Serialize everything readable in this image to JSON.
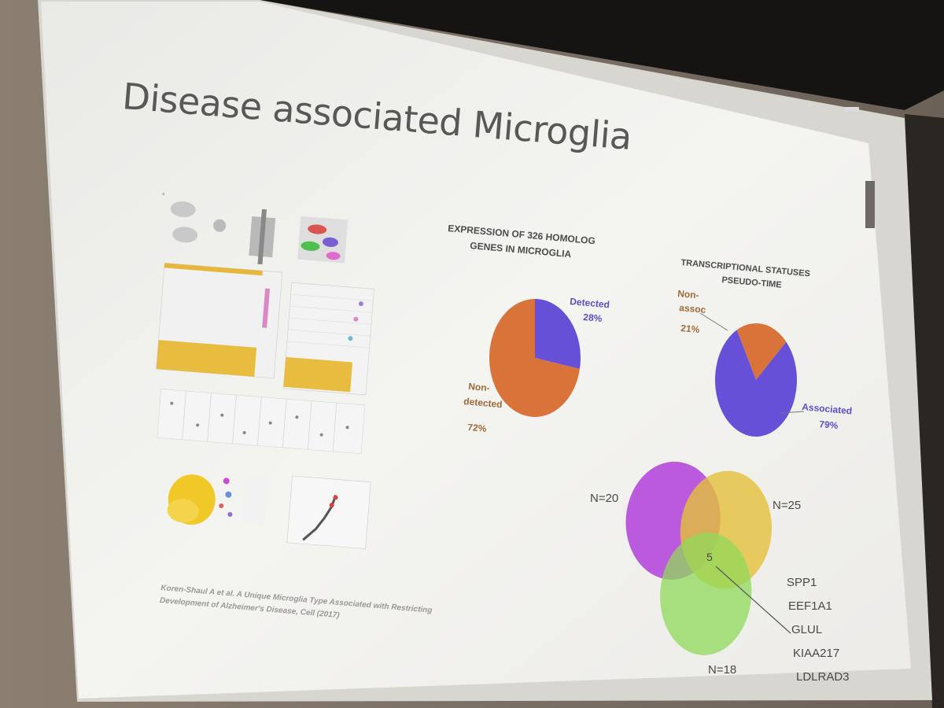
{
  "slide": {
    "title": "Disease associated Microglia",
    "citation_line1": "Koren-Shaul A et al. A Unique Microglia Type Associated with Restricting",
    "citation_line2": "Development of Alzheimer's Disease, Cell (2017)"
  },
  "pie1": {
    "title_line1": "EXPRESSION OF 326 HOMOLOG",
    "title_line2": "GENES IN MICROGLIA",
    "detected_label": "Detected",
    "detected_pct": "28%",
    "nondetected_label_line1": "Non-",
    "nondetected_label_line2": "detected",
    "nondetected_pct": "72%"
  },
  "pie2": {
    "title_line1": "TRANSCRIPTIONAL STATUSES",
    "title_line2": "PSEUDO-TIME",
    "nonassoc_label_line1": "Non-",
    "nonassoc_label_line2": "assoc",
    "nonassoc_pct": "21%",
    "associated_label": "Associated",
    "associated_pct": "79%"
  },
  "venn": {
    "n_left": "N=20",
    "n_right": "N=25",
    "n_bottom": "N=18",
    "intersection": "5",
    "genes": [
      "SPP1",
      "EEF1A1",
      "GLUL",
      "KIAA217",
      "LDLRAD3"
    ]
  },
  "chart_data": [
    {
      "type": "pie",
      "title": "EXPRESSION OF 326 HOMOLOG GENES IN MICROGLIA",
      "categories": [
        "Detected",
        "Non-detected"
      ],
      "values": [
        28,
        72
      ],
      "colors": [
        "#6650d8",
        "#d9733a"
      ]
    },
    {
      "type": "pie",
      "title": "TRANSCRIPTIONAL STATUSES PSEUDO-TIME",
      "categories": [
        "Non-assoc",
        "Associated"
      ],
      "values": [
        21,
        79
      ],
      "colors": [
        "#d9733a",
        "#6650d8"
      ]
    }
  ],
  "colors": {
    "screen": "#f2f1ee",
    "purple_slice": "#6650d8",
    "orange_slice": "#d9733a",
    "venn_purple": "#b23fd9",
    "venn_yellow": "#e3c03a",
    "venn_green": "#8fd95a"
  }
}
